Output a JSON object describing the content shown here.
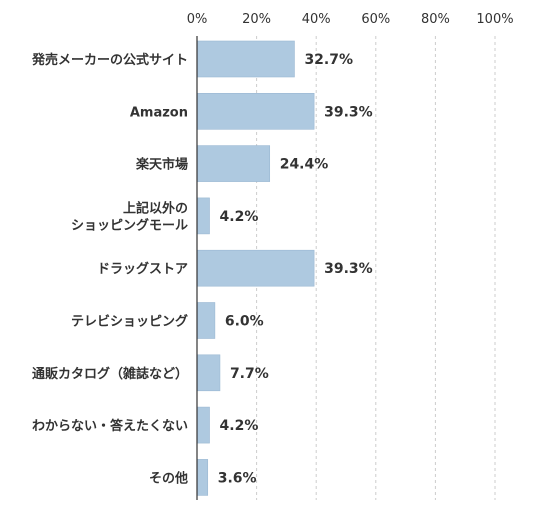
{
  "chart_data": {
    "type": "bar",
    "orientation": "horizontal",
    "categories": [
      [
        "発売メーカーの公式サイト"
      ],
      [
        "Amazon"
      ],
      [
        "楽天市場"
      ],
      [
        "上記以外の",
        "ショッピングモール"
      ],
      [
        "ドラッグストア"
      ],
      [
        "テレビショッピング"
      ],
      [
        "通販カタログ（雑誌など）"
      ],
      [
        "わからない・答えたくない"
      ],
      [
        "その他"
      ]
    ],
    "values": [
      32.7,
      39.3,
      24.4,
      4.2,
      39.3,
      6.0,
      7.7,
      4.2,
      3.6
    ],
    "value_labels": [
      "32.7%",
      "39.3%",
      "24.4%",
      "4.2%",
      "39.3%",
      "6.0%",
      "7.7%",
      "4.2%",
      "3.6%"
    ],
    "xlim": [
      0,
      100
    ],
    "ticks": [
      0,
      20,
      40,
      60,
      80,
      100
    ],
    "tick_labels": [
      "0%",
      "20%",
      "40%",
      "60%",
      "80%",
      "100%"
    ],
    "grid": "vertical dashed",
    "title": "",
    "xlabel": "",
    "ylabel": "",
    "colors": {
      "bar": "#aec9e0",
      "bar_stroke": "#9bb8d3",
      "axis": "#333333",
      "grid": "#cccccc",
      "text": "#333333"
    }
  }
}
